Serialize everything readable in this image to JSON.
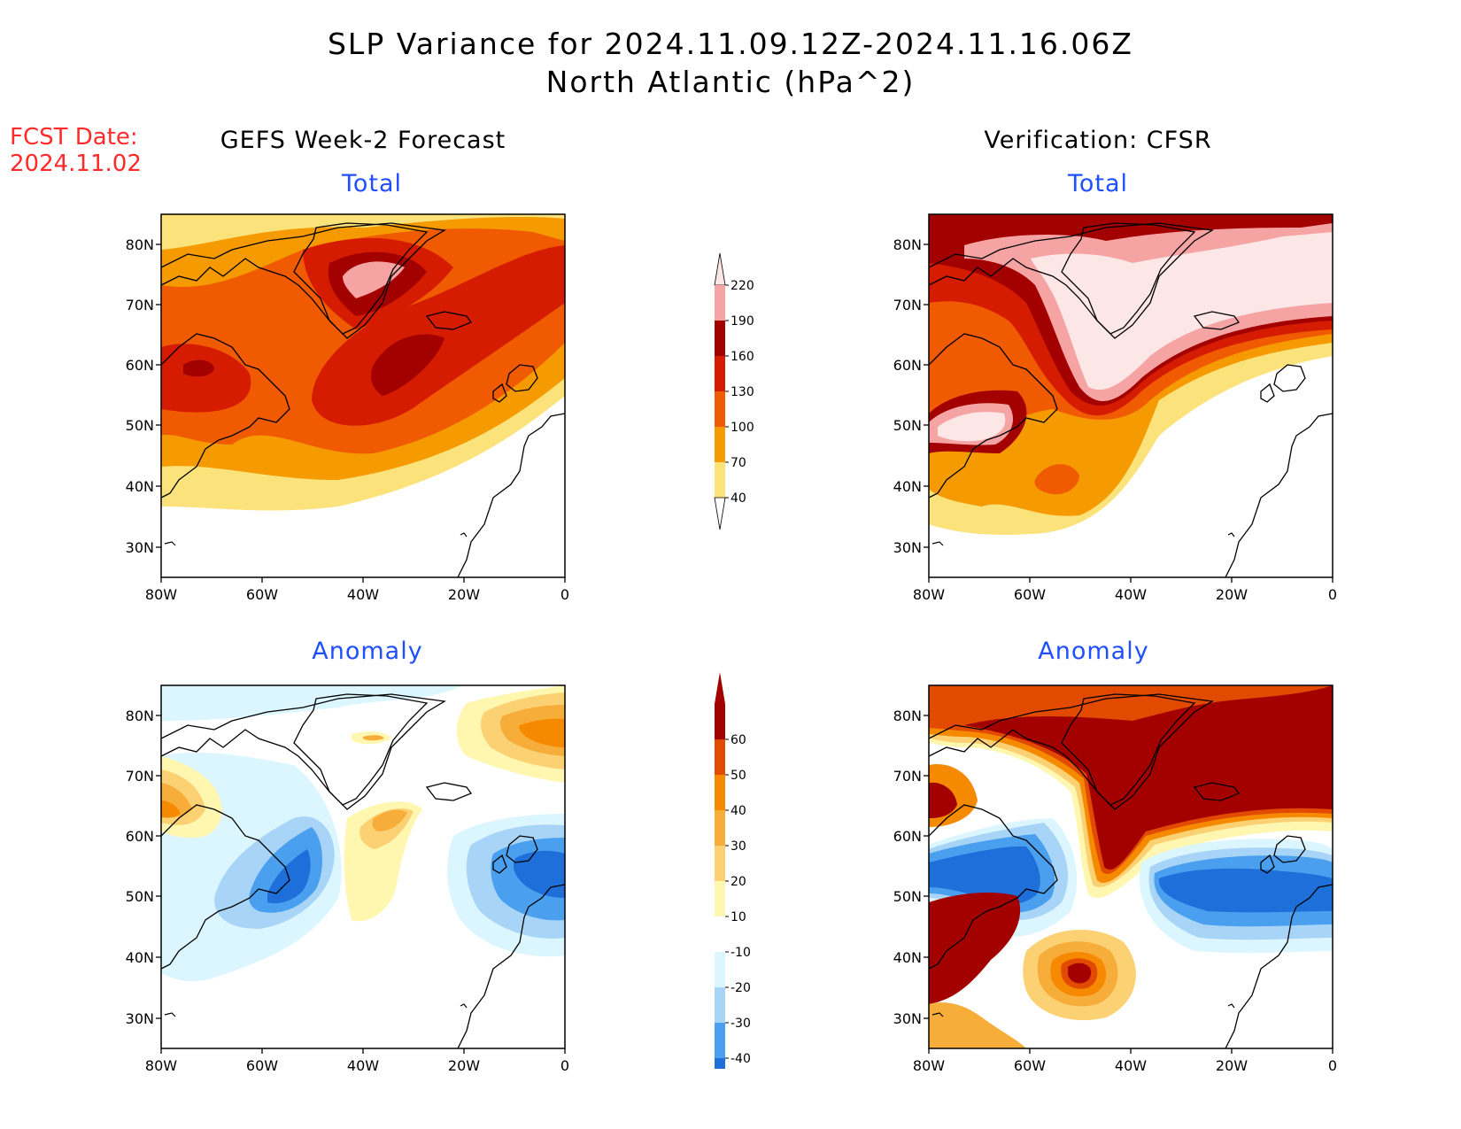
{
  "header": {
    "title_line1": "SLP Variance for 2024.11.09.12Z-2024.11.16.06Z",
    "title_line2": "North Atlantic (hPa^2)",
    "fcst_label": "FCST Date:",
    "fcst_date": "2024.11.02"
  },
  "columns": {
    "left_title": "GEFS Week-2 Forecast",
    "right_title": "Verification: CFSR"
  },
  "panels": {
    "total_label": "Total",
    "anomaly_label": "Anomaly"
  },
  "map": {
    "lat_labels": [
      "80N",
      "70N",
      "60N",
      "50N",
      "40N",
      "30N"
    ],
    "lon_labels": [
      "80W",
      "60W",
      "40W",
      "20W",
      "0"
    ]
  },
  "colorbars": {
    "total": {
      "levels": [
        "220",
        "190",
        "160",
        "130",
        "100",
        "70",
        "40"
      ],
      "colors": [
        "#f5a3a3",
        "#a30000",
        "#d61c00",
        "#f05a00",
        "#f59a00",
        "#fce27a"
      ]
    },
    "anomaly": {
      "levels": [
        "60",
        "50",
        "40",
        "30",
        "20",
        "10",
        "-10",
        "-20",
        "-30",
        "-40"
      ],
      "colors": [
        "#a30000",
        "#e24a00",
        "#f58a00",
        "#f7ad3a",
        "#fbd173",
        "#fff6b0",
        "#ffffff",
        "#dcf6ff",
        "#a8d5f7",
        "#4aa0ee",
        "#1e6fd9"
      ]
    }
  },
  "palette": {
    "total_top": "#fde6e6",
    "anomaly_top": "#a30000",
    "anomaly_bottom": "#1e6fd9",
    "panel_title_color": "#1f4fff",
    "fcst_color": "#ff2a2a"
  }
}
